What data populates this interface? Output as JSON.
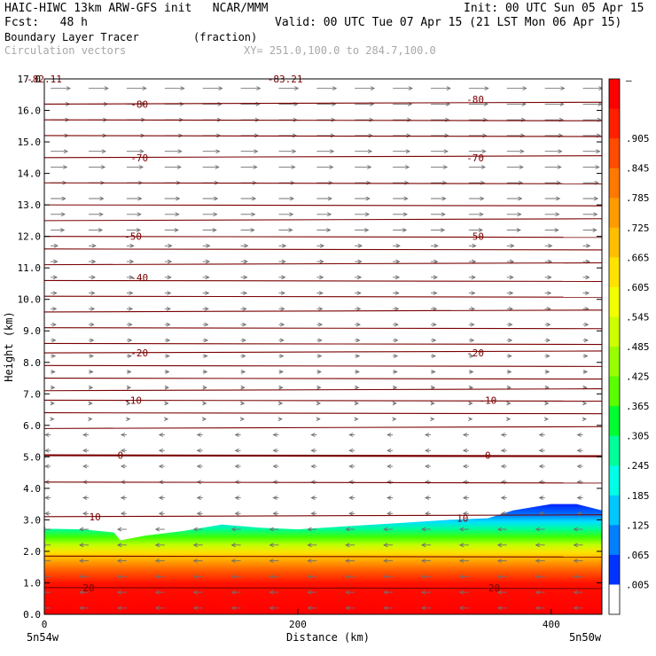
{
  "header": {
    "line1_left": "HAIC-HIWC 13km ARW-GFS init   NCAR/MMM",
    "line1_right": "Init: 00 UTC Sun 05 Apr 15",
    "line2_left": "Fcst:   48 h",
    "line2_right": "Valid: 00 UTC Tue 07 Apr 15 (21 LST Mon 06 Apr 15)",
    "line3_left": "Boundary Layer Tracer",
    "line3_mid": "(fraction)",
    "line4_left": "Circulation vectors",
    "line4_mid": "XY= 251.0,100.0 to 284.7,100.0"
  },
  "chart_data": {
    "type": "heatmap",
    "ylabel": "Height (km)",
    "xlabel": "Distance (km)",
    "xlim": [
      0,
      440
    ],
    "ylim": [
      0,
      17
    ],
    "x_ticks": [
      0,
      200,
      400
    ],
    "x_tick_labels": [
      "0",
      "200",
      "400"
    ],
    "y_ticks": [
      0,
      1,
      2,
      3,
      4,
      5,
      6,
      7,
      8,
      9,
      10,
      11,
      12,
      13,
      14,
      15,
      16,
      17
    ],
    "y_tick_labels": [
      "0.0",
      "1.0",
      "2.0",
      "3.0",
      "4.0",
      "5.0",
      "6.0",
      "7.0",
      "8.0",
      "9.0",
      "10.0",
      "11.0",
      "12.0",
      "13.0",
      "14.0",
      "15.0",
      "16.0",
      "17.0"
    ],
    "endpoint_labels": {
      "left": "5n54w",
      "right": "5n50w"
    },
    "tracer_top_km": [
      [
        0,
        2.72
      ],
      [
        30,
        2.7
      ],
      [
        55,
        2.6
      ],
      [
        60,
        2.35
      ],
      [
        80,
        2.5
      ],
      [
        110,
        2.65
      ],
      [
        140,
        2.85
      ],
      [
        170,
        2.75
      ],
      [
        200,
        2.7
      ],
      [
        240,
        2.8
      ],
      [
        280,
        2.9
      ],
      [
        320,
        3.0
      ],
      [
        350,
        3.05
      ],
      [
        370,
        3.3
      ],
      [
        400,
        3.5
      ],
      [
        420,
        3.5
      ],
      [
        440,
        3.3
      ]
    ],
    "colorbar": {
      "top_label": "–",
      "labels": [
        ".905",
        ".845",
        ".785",
        ".725",
        ".665",
        ".605",
        ".545",
        ".485",
        ".425",
        ".365",
        ".305",
        ".245",
        ".185",
        ".125",
        ".065",
        ".005"
      ],
      "colors": [
        "#ff0000",
        "#ff2000",
        "#ff4c00",
        "#ff7800",
        "#ff9b00",
        "#ffbf00",
        "#ffe300",
        "#f3ff00",
        "#ccff00",
        "#99ff00",
        "#5aff00",
        "#00ff30",
        "#00ff99",
        "#00ffe6",
        "#00c8ff",
        "#0080ff",
        "#0033ff",
        "#ffffff"
      ]
    },
    "isotherm_labels": [
      {
        "value": "-82.11",
        "x": 0,
        "y": 17.0
      },
      {
        "value": "-83.21",
        "x": 190,
        "y": 17.0
      },
      {
        "value": "-80",
        "x": 75,
        "y": 16.2
      },
      {
        "value": "-80",
        "x": 340,
        "y": 16.35
      },
      {
        "value": "-70",
        "x": 75,
        "y": 14.5
      },
      {
        "value": "-70",
        "x": 340,
        "y": 14.5
      },
      {
        "value": "-50",
        "x": 70,
        "y": 12.0
      },
      {
        "value": "-50",
        "x": 340,
        "y": 12.0
      },
      {
        "value": "-40",
        "x": 75,
        "y": 10.7
      },
      {
        "value": "-20",
        "x": 75,
        "y": 8.3
      },
      {
        "value": "-20",
        "x": 340,
        "y": 8.3
      },
      {
        "value": "-10",
        "x": 70,
        "y": 6.8
      },
      {
        "value": "-10",
        "x": 350,
        "y": 6.8
      },
      {
        "value": "0",
        "x": 60,
        "y": 5.05
      },
      {
        "value": "0",
        "x": 350,
        "y": 5.05
      },
      {
        "value": "10",
        "x": 40,
        "y": 3.1
      },
      {
        "value": "10",
        "x": 330,
        "y": 3.05
      },
      {
        "value": "20",
        "x": 35,
        "y": 0.85
      },
      {
        "value": "20",
        "x": 355,
        "y": 0.85
      }
    ],
    "isotherm_heights_km": [
      16.2,
      15.7,
      15.2,
      14.5,
      13.7,
      13.0,
      12.5,
      12.0,
      11.6,
      11.1,
      10.6,
      10.1,
      9.6,
      9.1,
      8.6,
      8.3,
      7.9,
      7.5,
      7.1,
      6.8,
      6.4,
      5.9,
      5.05,
      4.2,
      3.1,
      1.85,
      0.85
    ],
    "grid": false,
    "legend": "colorbar-right"
  }
}
